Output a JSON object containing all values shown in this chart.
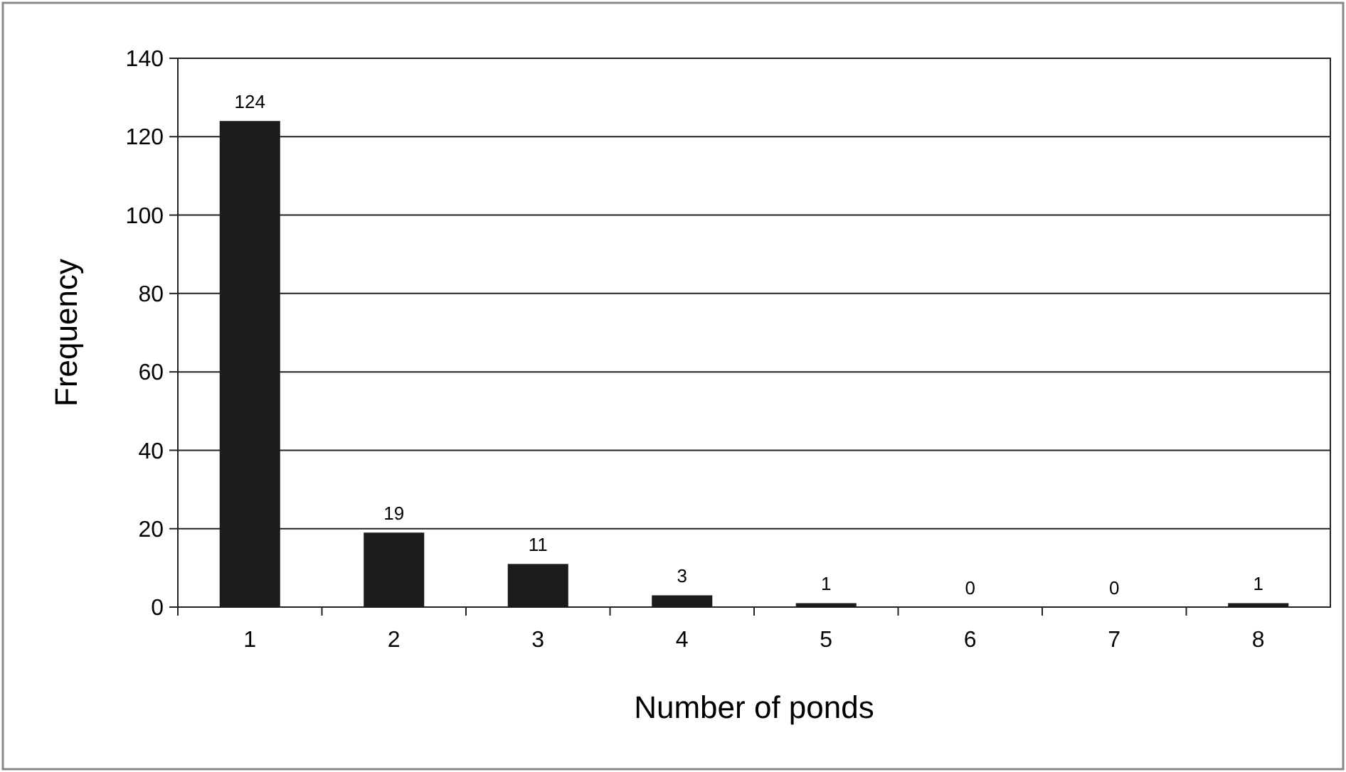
{
  "chart_data": {
    "type": "bar",
    "xlabel": "Number of ponds",
    "ylabel": "Frequency",
    "categories": [
      "1",
      "2",
      "3",
      "4",
      "5",
      "6",
      "7",
      "8"
    ],
    "values": [
      124,
      19,
      11,
      3,
      1,
      0,
      0,
      1
    ],
    "color": "#1c1c1c",
    "ylim": [
      0,
      140
    ],
    "yticks": [
      0,
      20,
      40,
      60,
      80,
      100,
      120,
      140
    ],
    "grid": "y",
    "data_labels": true
  }
}
